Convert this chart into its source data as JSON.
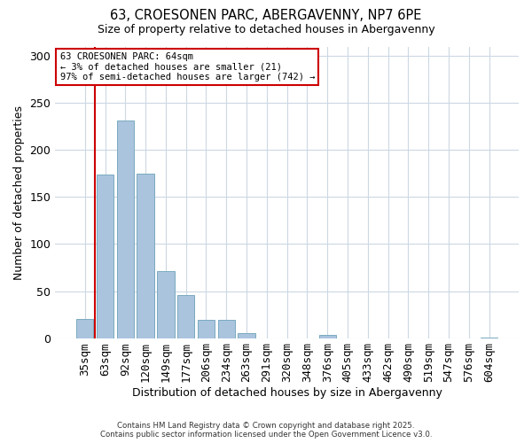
{
  "title": "63, CROESONEN PARC, ABERGAVENNY, NP7 6PE",
  "subtitle": "Size of property relative to detached houses in Abergavenny",
  "xlabel": "Distribution of detached houses by size in Abergavenny",
  "ylabel": "Number of detached properties",
  "bar_labels": [
    "35sqm",
    "63sqm",
    "92sqm",
    "120sqm",
    "149sqm",
    "177sqm",
    "206sqm",
    "234sqm",
    "263sqm",
    "291sqm",
    "320sqm",
    "348sqm",
    "376sqm",
    "405sqm",
    "433sqm",
    "462sqm",
    "490sqm",
    "519sqm",
    "547sqm",
    "576sqm",
    "604sqm"
  ],
  "bar_values": [
    20,
    174,
    231,
    175,
    71,
    46,
    19,
    19,
    5,
    0,
    0,
    0,
    3,
    0,
    0,
    0,
    0,
    0,
    0,
    0,
    1
  ],
  "bar_color": "#aac4de",
  "bar_edge_color": "#7aaabf",
  "vline_x": 1,
  "vline_color": "#cc0000",
  "ylim": [
    0,
    310
  ],
  "yticks": [
    0,
    50,
    100,
    150,
    200,
    250,
    300
  ],
  "annotation_title": "63 CROESONEN PARC: 64sqm",
  "annotation_line1": "← 3% of detached houses are smaller (21)",
  "annotation_line2": "97% of semi-detached houses are larger (742) →",
  "annotation_box_color": "#ffffff",
  "annotation_box_edge": "#cc0000",
  "footer_line1": "Contains HM Land Registry data © Crown copyright and database right 2025.",
  "footer_line2": "Contains public sector information licensed under the Open Government Licence v3.0.",
  "background_color": "#ffffff",
  "grid_color": "#ccd8e4"
}
